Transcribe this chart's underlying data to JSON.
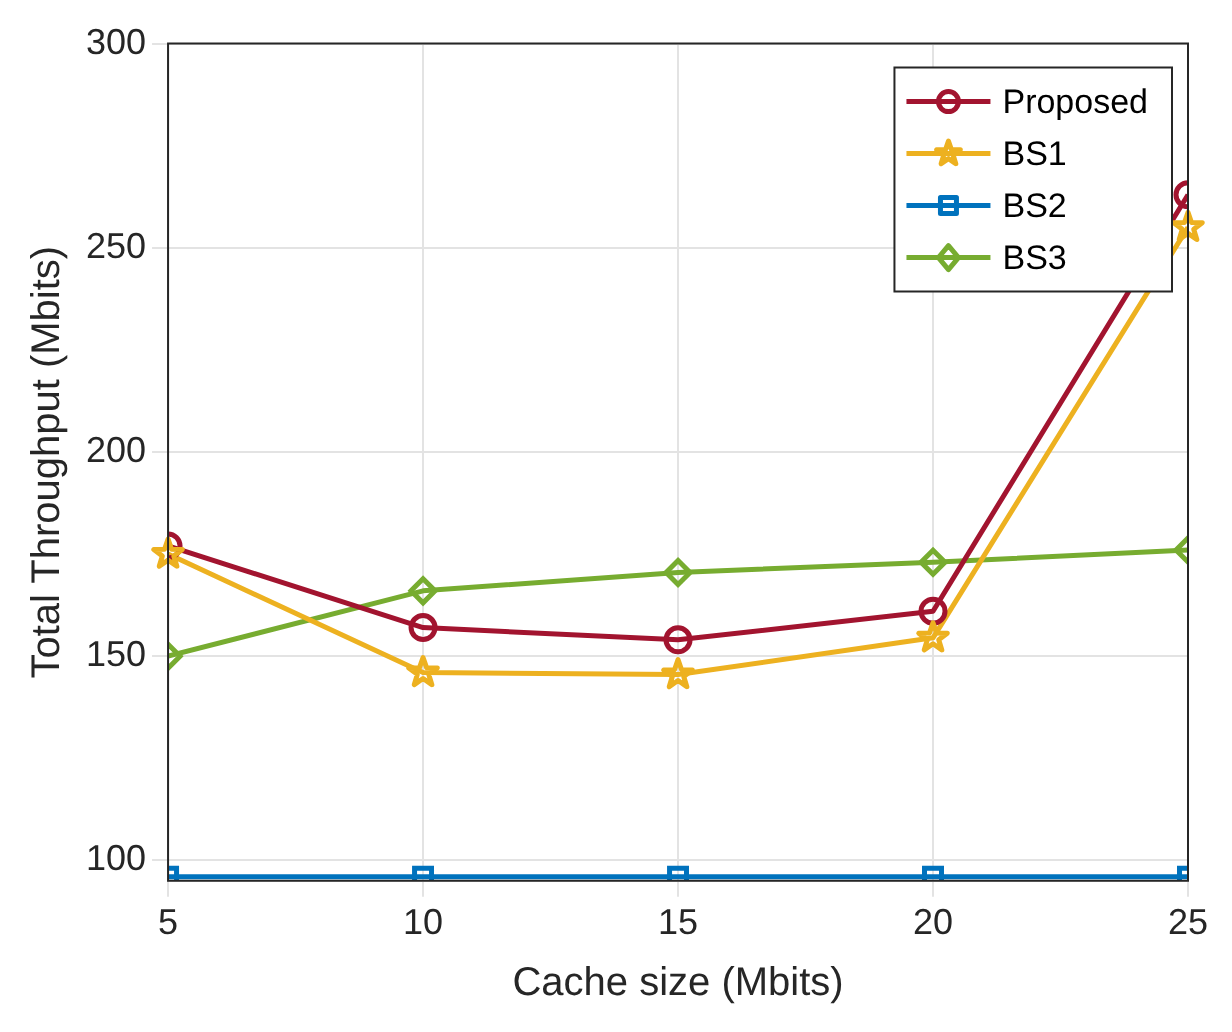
{
  "chart_data": {
    "type": "line",
    "xlabel": "Cache size (Mbits)",
    "ylabel": "Total Throughput (Mbits)",
    "x": [
      5,
      10,
      15,
      20,
      25
    ],
    "xlim": [
      5,
      25
    ],
    "xticks": [
      5,
      10,
      15,
      20,
      25
    ],
    "ylim": [
      95,
      300
    ],
    "yticks": [
      100,
      150,
      200,
      250,
      300
    ],
    "grid": true,
    "legend": "top right",
    "line_style": "solid",
    "series": [
      {
        "name": "Proposed",
        "color": "#a2142f",
        "marker": "circle",
        "values": [
          177,
          157,
          154,
          161,
          263
        ]
      },
      {
        "name": "BS1",
        "color": "#edb120",
        "marker": "star",
        "values": [
          175,
          146,
          145.5,
          154.5,
          255
        ]
      },
      {
        "name": "BS2",
        "color": "#0072bd",
        "marker": "square",
        "values": [
          96,
          96,
          96,
          96,
          96
        ]
      },
      {
        "name": "BS3",
        "color": "#77ac30",
        "marker": "diamond",
        "values": [
          150,
          166,
          170.5,
          173,
          176
        ]
      }
    ]
  }
}
